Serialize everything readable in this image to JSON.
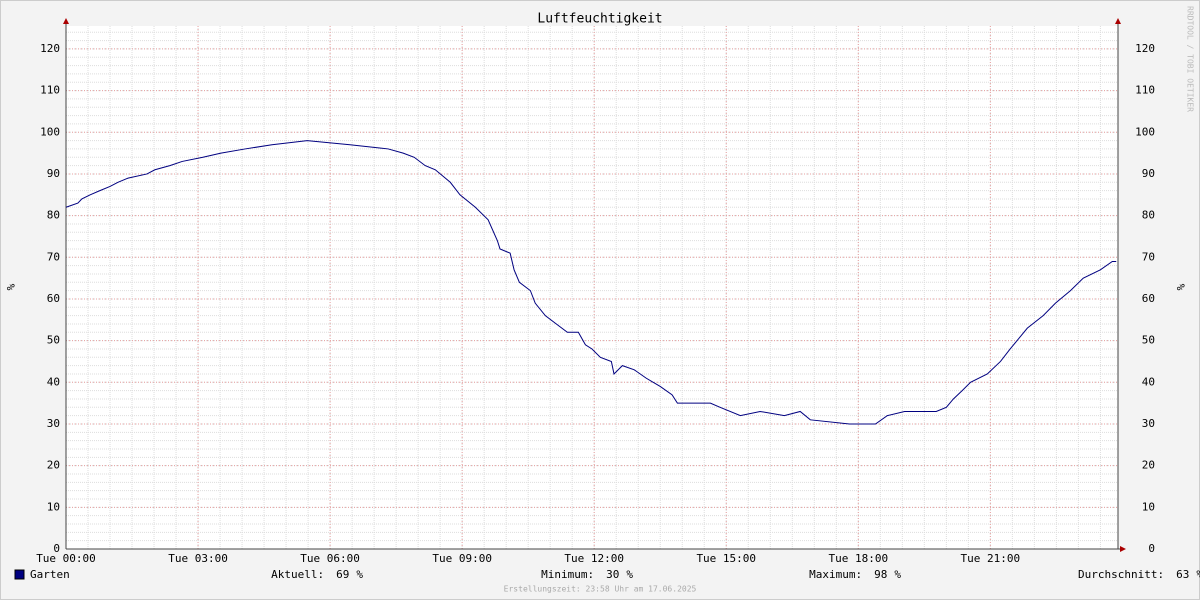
{
  "chart_data": {
    "type": "line",
    "title": "Luftfeuchtigkeit",
    "y_label": "%",
    "watermark": "RRDTOOL / TOBI OETIKER",
    "x": [
      0,
      0.27,
      0.36,
      0.55,
      0.77,
      1.0,
      1.18,
      1.41,
      1.84,
      2.02,
      2.36,
      2.64,
      3.11,
      3.52,
      4.07,
      4.68,
      5.48,
      6.45,
      7.32,
      7.66,
      7.91,
      8.16,
      8.39,
      8.73,
      8.95,
      9.3,
      9.59,
      9.8,
      9.86,
      10.09,
      10.18,
      10.3,
      10.55,
      10.66,
      10.89,
      11.14,
      11.39,
      11.64,
      11.8,
      11.95,
      12.14,
      12.39,
      12.45,
      12.64,
      12.91,
      13.18,
      13.5,
      13.77,
      13.89,
      14.41,
      14.64,
      14.86,
      15.32,
      15.77,
      16.32,
      16.68,
      16.91,
      17.8,
      18.39,
      18.66,
      19.05,
      19.77,
      20.0,
      20.16,
      20.36,
      20.55,
      20.93,
      21.23,
      21.45,
      21.84,
      22.2,
      22.48,
      22.82,
      23.11,
      23.5,
      23.77,
      23.86
    ],
    "series": [
      {
        "name": "Garten",
        "color": "#000080",
        "values": [
          82,
          83,
          84,
          85,
          86,
          87,
          88,
          89,
          90,
          91,
          92,
          93,
          94,
          95,
          96,
          97,
          98,
          97,
          96,
          95,
          94,
          92,
          91,
          88,
          85,
          82,
          79,
          74,
          72,
          71,
          67,
          64,
          62,
          59,
          56,
          54,
          52,
          52,
          49,
          48,
          46,
          45,
          42,
          44,
          43,
          41,
          39,
          37,
          35,
          35,
          35,
          34,
          32,
          33,
          32,
          33,
          31,
          30,
          30,
          32,
          33,
          33,
          34,
          36,
          38,
          40,
          42,
          45,
          48,
          53,
          56,
          59,
          62,
          65,
          67,
          69,
          69
        ]
      }
    ],
    "xlim": [
      0,
      23.9
    ],
    "xticks": [
      {
        "value": 0,
        "label": "Tue 00:00"
      },
      {
        "value": 3,
        "label": "Tue 03:00"
      },
      {
        "value": 6,
        "label": "Tue 06:00"
      },
      {
        "value": 9,
        "label": "Tue 09:00"
      },
      {
        "value": 12,
        "label": "Tue 12:00"
      },
      {
        "value": 15,
        "label": "Tue 15:00"
      },
      {
        "value": 18,
        "label": "Tue 18:00"
      },
      {
        "value": 21,
        "label": "Tue 21:00"
      }
    ],
    "ylim": [
      0,
      125.5
    ],
    "yticks": [
      0,
      10,
      20,
      30,
      40,
      50,
      60,
      70,
      80,
      90,
      100,
      110,
      120
    ],
    "grid": true,
    "minor_grid": {
      "x_step": 0.5,
      "y_step": 2
    },
    "stats": [
      {
        "label": "Aktuell:",
        "value": 69
      },
      {
        "label": "Minimum:",
        "value": 30
      },
      {
        "label": "Maximum:",
        "value": 98
      },
      {
        "label": "Durchschnitt:",
        "value": 63
      }
    ],
    "unit": "%",
    "footer": "Erstellungszeit: 23:58 Uhr am 17.06.2025"
  }
}
